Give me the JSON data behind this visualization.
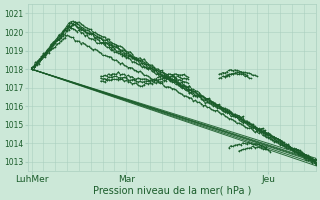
{
  "background_color": "#cce8d8",
  "grid_color_v": "#aacfbf",
  "grid_color_h": "#aacfbf",
  "line_color": "#1a5c2a",
  "xlabel": "Pression niveau de la mer( hPa )",
  "xtick_labels": [
    "LuhMer",
    "Mar",
    "Jeu"
  ],
  "xtick_positions": [
    0,
    48,
    120
  ],
  "ylim": [
    1012.5,
    1021.5
  ],
  "yticks": [
    1013,
    1014,
    1015,
    1016,
    1017,
    1018,
    1019,
    1020,
    1021
  ],
  "xlim": [
    -2,
    144
  ],
  "n_points": 145,
  "figsize": [
    3.2,
    2.0
  ],
  "dpi": 100
}
